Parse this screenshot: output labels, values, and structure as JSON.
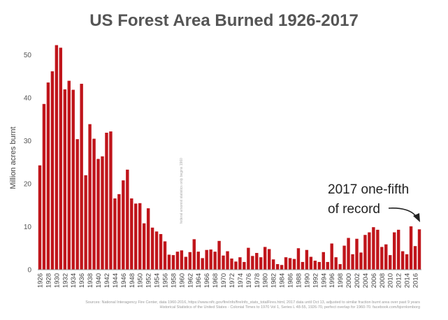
{
  "chart_data": {
    "type": "bar",
    "title": "US Forest Area Burned 1926-2017",
    "ylabel": "Million acres burnt",
    "xlabel": "",
    "ylim": [
      0,
      55
    ],
    "yticks": [
      0,
      10,
      20,
      30,
      40,
      50
    ],
    "grid": false,
    "legend": "none",
    "bar_color": "#c0151b",
    "years": [
      1926,
      1927,
      1928,
      1929,
      1930,
      1931,
      1932,
      1933,
      1934,
      1935,
      1936,
      1937,
      1938,
      1939,
      1940,
      1941,
      1942,
      1943,
      1944,
      1945,
      1946,
      1947,
      1948,
      1949,
      1950,
      1951,
      1952,
      1953,
      1954,
      1955,
      1956,
      1957,
      1958,
      1959,
      1960,
      1961,
      1962,
      1963,
      1964,
      1965,
      1966,
      1967,
      1968,
      1969,
      1970,
      1971,
      1972,
      1973,
      1974,
      1975,
      1976,
      1977,
      1978,
      1979,
      1980,
      1981,
      1982,
      1983,
      1984,
      1985,
      1986,
      1987,
      1988,
      1989,
      1990,
      1991,
      1992,
      1993,
      1994,
      1995,
      1996,
      1997,
      1998,
      1999,
      2000,
      2001,
      2002,
      2003,
      2004,
      2005,
      2006,
      2007,
      2008,
      2009,
      2010,
      2011,
      2012,
      2013,
      2014,
      2015,
      2016,
      2017
    ],
    "xtick_labels": [
      "1926",
      "1928",
      "1930",
      "1932",
      "1934",
      "1936",
      "1938",
      "1940",
      "1942",
      "1944",
      "1946",
      "1948",
      "1950",
      "1952",
      "1954",
      "1956",
      "1958",
      "1960",
      "1962",
      "1964",
      "1966",
      "1968",
      "1970",
      "1972",
      "1974",
      "1976",
      "1978",
      "1980",
      "1982",
      "1984",
      "1986",
      "1988",
      "1990",
      "1992",
      "1994",
      "1996",
      "1998",
      "2000",
      "2002",
      "2004",
      "2006",
      "2008",
      "2010",
      "2012",
      "2014",
      "2016"
    ],
    "values": [
      24.3,
      38.6,
      43.6,
      46.2,
      52.3,
      51.7,
      42.0,
      44.0,
      41.9,
      30.4,
      43.3,
      22.0,
      33.9,
      30.5,
      25.8,
      26.4,
      31.9,
      32.2,
      16.6,
      17.6,
      20.8,
      23.3,
      16.6,
      15.4,
      15.5,
      10.8,
      14.3,
      9.8,
      8.9,
      8.3,
      6.6,
      3.5,
      3.4,
      4.2,
      4.5,
      3.0,
      4.1,
      7.1,
      4.2,
      2.7,
      4.6,
      4.7,
      4.2,
      6.7,
      3.3,
      4.3,
      2.6,
      1.9,
      2.9,
      1.8,
      5.1,
      3.2,
      3.9,
      2.9,
      5.3,
      4.8,
      2.4,
      1.3,
      1.1,
      2.9,
      2.7,
      2.5,
      5.0,
      1.8,
      4.6,
      3.0,
      2.1,
      1.8,
      4.1,
      1.8,
      6.1,
      2.9,
      1.3,
      5.6,
      7.4,
      3.6,
      7.2,
      4.0,
      8.1,
      8.7,
      9.9,
      9.3,
      5.3,
      5.9,
      3.4,
      8.7,
      9.3,
      4.3,
      3.6,
      10.1,
      5.5,
      9.4
    ],
    "annotation": {
      "line1": "2017 one-fifth",
      "line2": "of record"
    },
    "vertical_note": "federal arsonist statistics only begins 1960",
    "source_line1": "Sources: National Interagency Fire Center, data 1960-2016, https://www.nifc.gov/fireInfo/fireInfo_stats_totalFires.html, 2017 data until Oct 13, adjusted to similar fraction burnt area over past 9 years",
    "source_line2": "Historical Statistics of the United States - Colonial Times to 1970 Vol 1, Series L 48-55, 1926-70, perfect overlap for 1960-70. facebook.com/bjornlomborg"
  }
}
